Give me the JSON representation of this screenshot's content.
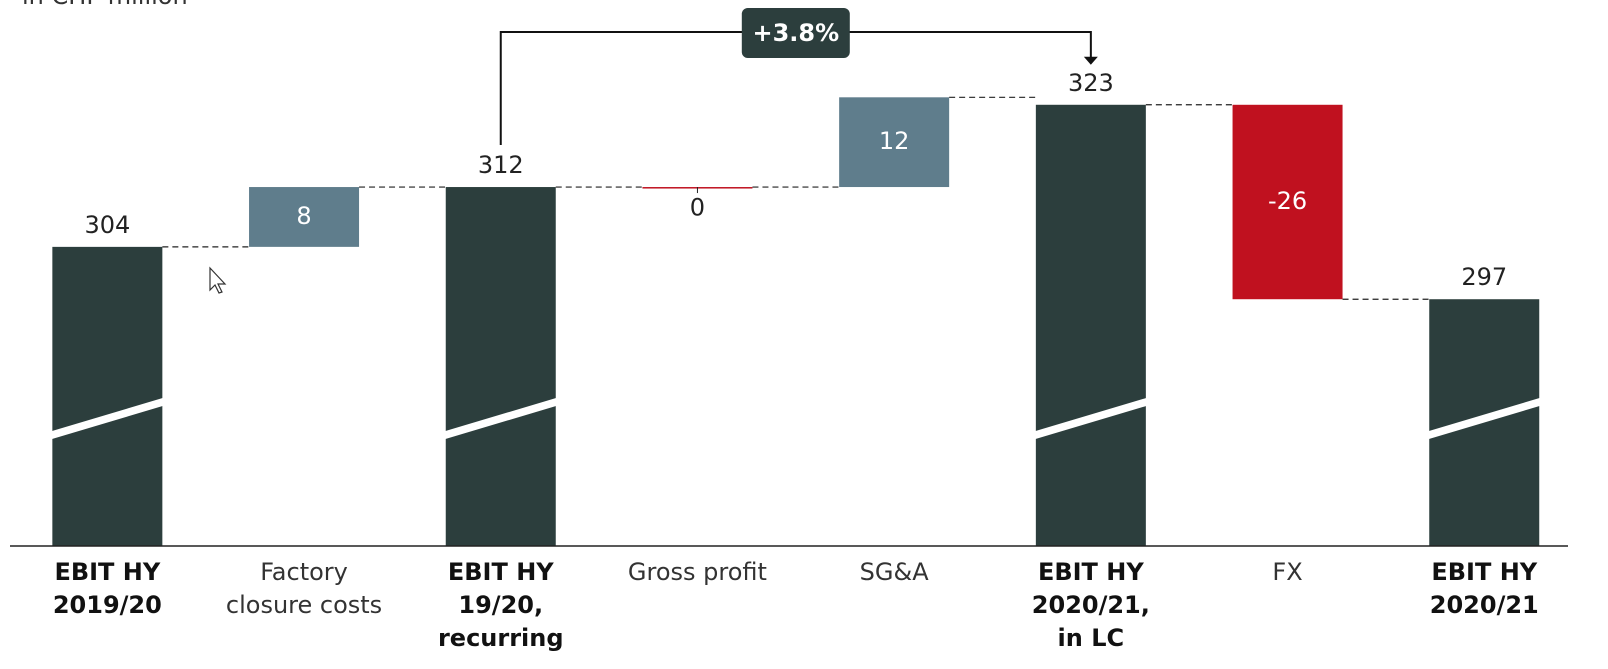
{
  "chart_data": {
    "type": "waterfall",
    "subtitle": "in CHF million",
    "categories": [
      "EBIT HY\n2019/20",
      "Factory\nclosure costs",
      "EBIT HY\n19/20,\nrecurring",
      "Gross profit",
      "SG&A",
      "EBIT HY\n2020/21,\nin LC",
      "FX",
      "EBIT HY\n2020/21"
    ],
    "measure": [
      "absolute",
      "relative",
      "absolute",
      "relative",
      "relative",
      "absolute",
      "relative",
      "absolute"
    ],
    "values": [
      304,
      8,
      312,
      0,
      12,
      323,
      -26,
      297
    ],
    "colors": {
      "total": "#2c3e3d",
      "increase": "#5f7d8c",
      "decrease": "#c0111f"
    },
    "ylim": [
      264,
      333
    ],
    "annotation": "+3.8%"
  }
}
